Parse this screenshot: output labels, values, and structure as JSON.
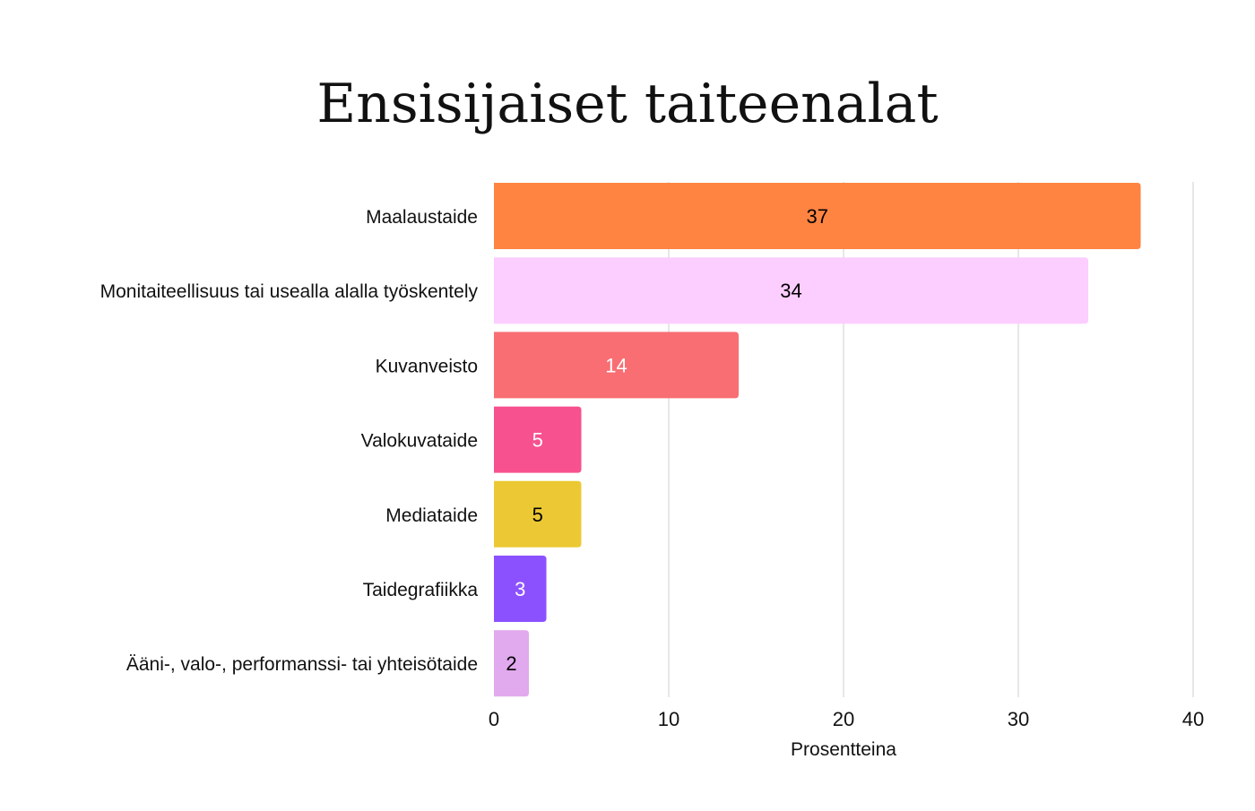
{
  "chart_data": {
    "type": "bar",
    "orientation": "horizontal",
    "title": "Ensisijaiset taiteenalat",
    "xlabel": "Prosentteina",
    "ylabel": "",
    "xlim": [
      0,
      40
    ],
    "xticks": [
      0,
      10,
      20,
      30,
      40
    ],
    "grid": "vertical",
    "legend": "none",
    "categories": [
      "Maalaustaide",
      "Monitaiteellisuus tai usealla alalla työskentely",
      "Kuvanveisto",
      "Valokuvataide",
      "Mediataide",
      "Taidegrafiikka",
      "Ääni-, valo-, performanssi- tai yhteisötaide"
    ],
    "values": [
      37,
      34,
      14,
      5,
      5,
      3,
      2
    ],
    "colors": [
      "#FF8442",
      "#FCCDFF",
      "#F86E73",
      "#F7518F",
      "#ECC934",
      "#8C51FF",
      "#E1A9EE"
    ],
    "label_colors": [
      "#000000",
      "#000000",
      "#ffffff",
      "#ffffff",
      "#000000",
      "#ffffff",
      "#000000"
    ]
  }
}
